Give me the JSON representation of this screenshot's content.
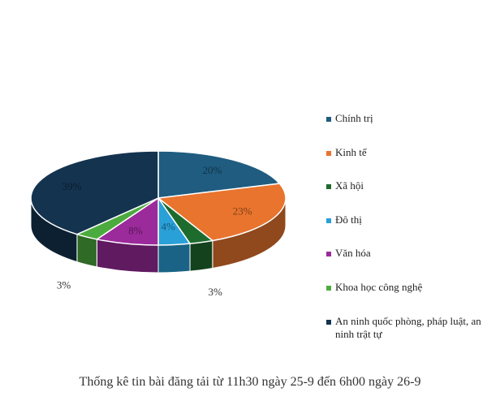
{
  "chart_data": {
    "type": "pie",
    "style": "3d-tilted",
    "categories": [
      "Chính trị",
      " Kinh tế",
      "Xã hội",
      "Đô thị",
      "Văn hóa",
      "Khoa học công nghệ",
      "An ninh quốc phòng, pháp luật, an ninh trật tự"
    ],
    "values": [
      20,
      23,
      3,
      4,
      8,
      3,
      39
    ],
    "labels": [
      "20%",
      "23%",
      "3%",
      "4%",
      "8%",
      "3%",
      "39%"
    ],
    "colors": [
      "#1f5c80",
      "#e8742e",
      "#1e6b2e",
      "#2aa0d8",
      "#9b2a9b",
      "#4cab3e",
      "#14334f"
    ],
    "legend_position": "right",
    "title": "",
    "caption": "Thống kê tin bài đăng tải từ 11h30 ngày 25-9 đến 6h00 ngày 26-9"
  }
}
